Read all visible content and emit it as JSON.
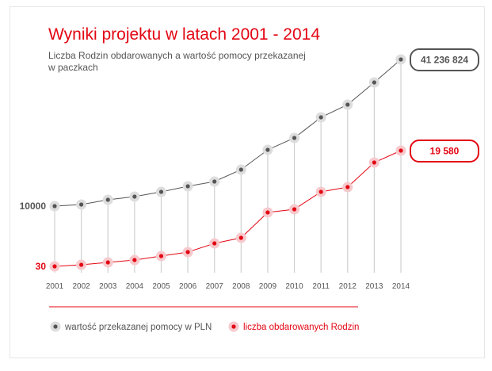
{
  "chart_data": {
    "type": "line",
    "title": "Wyniki projektu w latach 2001 - 2014",
    "subtitle_lines": [
      "Liczba Rodzin obdarowanych a wartość pomocy przekazanej",
      "w paczkach"
    ],
    "categories": [
      "2001",
      "2002",
      "2003",
      "2004",
      "2005",
      "2006",
      "2007",
      "2008",
      "2009",
      "2010",
      "2011",
      "2012",
      "2013",
      "2014"
    ],
    "series": [
      {
        "name": "wartość przekazanej pomocy w PLN",
        "color": "#555555",
        "halo": "#dddddd",
        "start_label": "10000",
        "end_label": "41 236 824",
        "values": [
          10000,
          456000,
          1793000,
          2684000,
          4021000,
          5581000,
          6918000,
          10261000,
          15832000,
          19175000,
          24969000,
          28535000,
          34774000,
          41236824
        ]
      },
      {
        "name": "liczba obdarowanych Rodzin",
        "color": "#e30613",
        "halo": "#f7c9cc",
        "start_label": "30",
        "end_label": "19 580",
        "values": [
          30,
          300,
          700,
          1100,
          1770,
          2440,
          3910,
          4850,
          9140,
          9670,
          12620,
          13420,
          17570,
          19580
        ]
      }
    ],
    "legend_position": "bottom",
    "grid": "vertical lines per year",
    "accent_color": "#e30613"
  }
}
